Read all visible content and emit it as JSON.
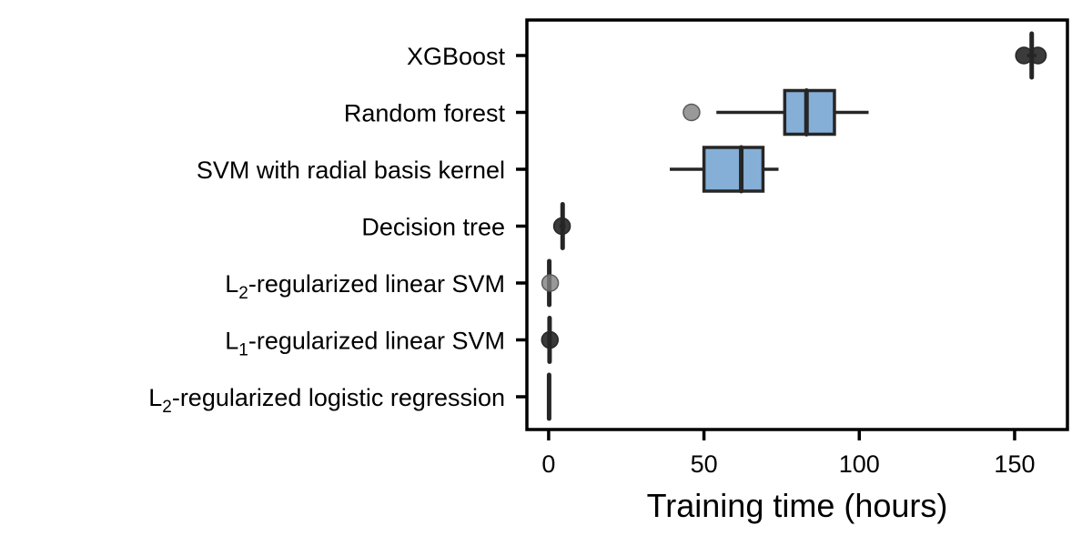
{
  "chart_data": {
    "type": "box",
    "orientation": "horizontal",
    "xlabel": "Training time (hours)",
    "xlim": [
      -7,
      167
    ],
    "xticks": [
      0,
      50,
      100,
      150
    ],
    "grid": false,
    "colors": {
      "box": "#85afd6",
      "line": "#262626",
      "outlier": "#7f7f7f"
    },
    "categories": [
      {
        "label": "XGBoost",
        "min": 154,
        "q1": 155,
        "median": 155.5,
        "q3": 156,
        "max": 157,
        "outliers": [
          153,
          157.5
        ]
      },
      {
        "label": "Random forest",
        "min": 54,
        "q1": 76,
        "median": 83,
        "q3": 92,
        "max": 103,
        "outliers": [
          46
        ]
      },
      {
        "label": "SVM with radial basis kernel",
        "min": 39,
        "q1": 50,
        "median": 62,
        "q3": 69,
        "max": 74,
        "outliers": []
      },
      {
        "label": "Decision tree",
        "min": 3.5,
        "q1": 4.2,
        "median": 4.5,
        "q3": 4.8,
        "max": 5.5,
        "outliers": [
          4.3
        ]
      },
      {
        "label": "L2-regularized linear SVM",
        "label_prefix": "L",
        "label_sub": "2",
        "label_suffix": "-regularized linear SVM",
        "min": 0.1,
        "q1": 0.15,
        "median": 0.2,
        "q3": 0.3,
        "max": 0.4,
        "outliers": [
          0.5
        ]
      },
      {
        "label": "L1-regularized linear SVM",
        "label_prefix": "L",
        "label_sub": "1",
        "label_suffix": "-regularized linear SVM",
        "min": 0.1,
        "q1": 0.2,
        "median": 0.3,
        "q3": 0.4,
        "max": 0.5,
        "outliers": [
          0.4
        ]
      },
      {
        "label": "L2-regularized logistic regression",
        "label_prefix": "L",
        "label_sub": "2",
        "label_suffix": "-regularized logistic regression",
        "min": 0.05,
        "q1": 0.1,
        "median": 0.15,
        "q3": 0.2,
        "max": 0.3,
        "outliers": []
      }
    ]
  }
}
